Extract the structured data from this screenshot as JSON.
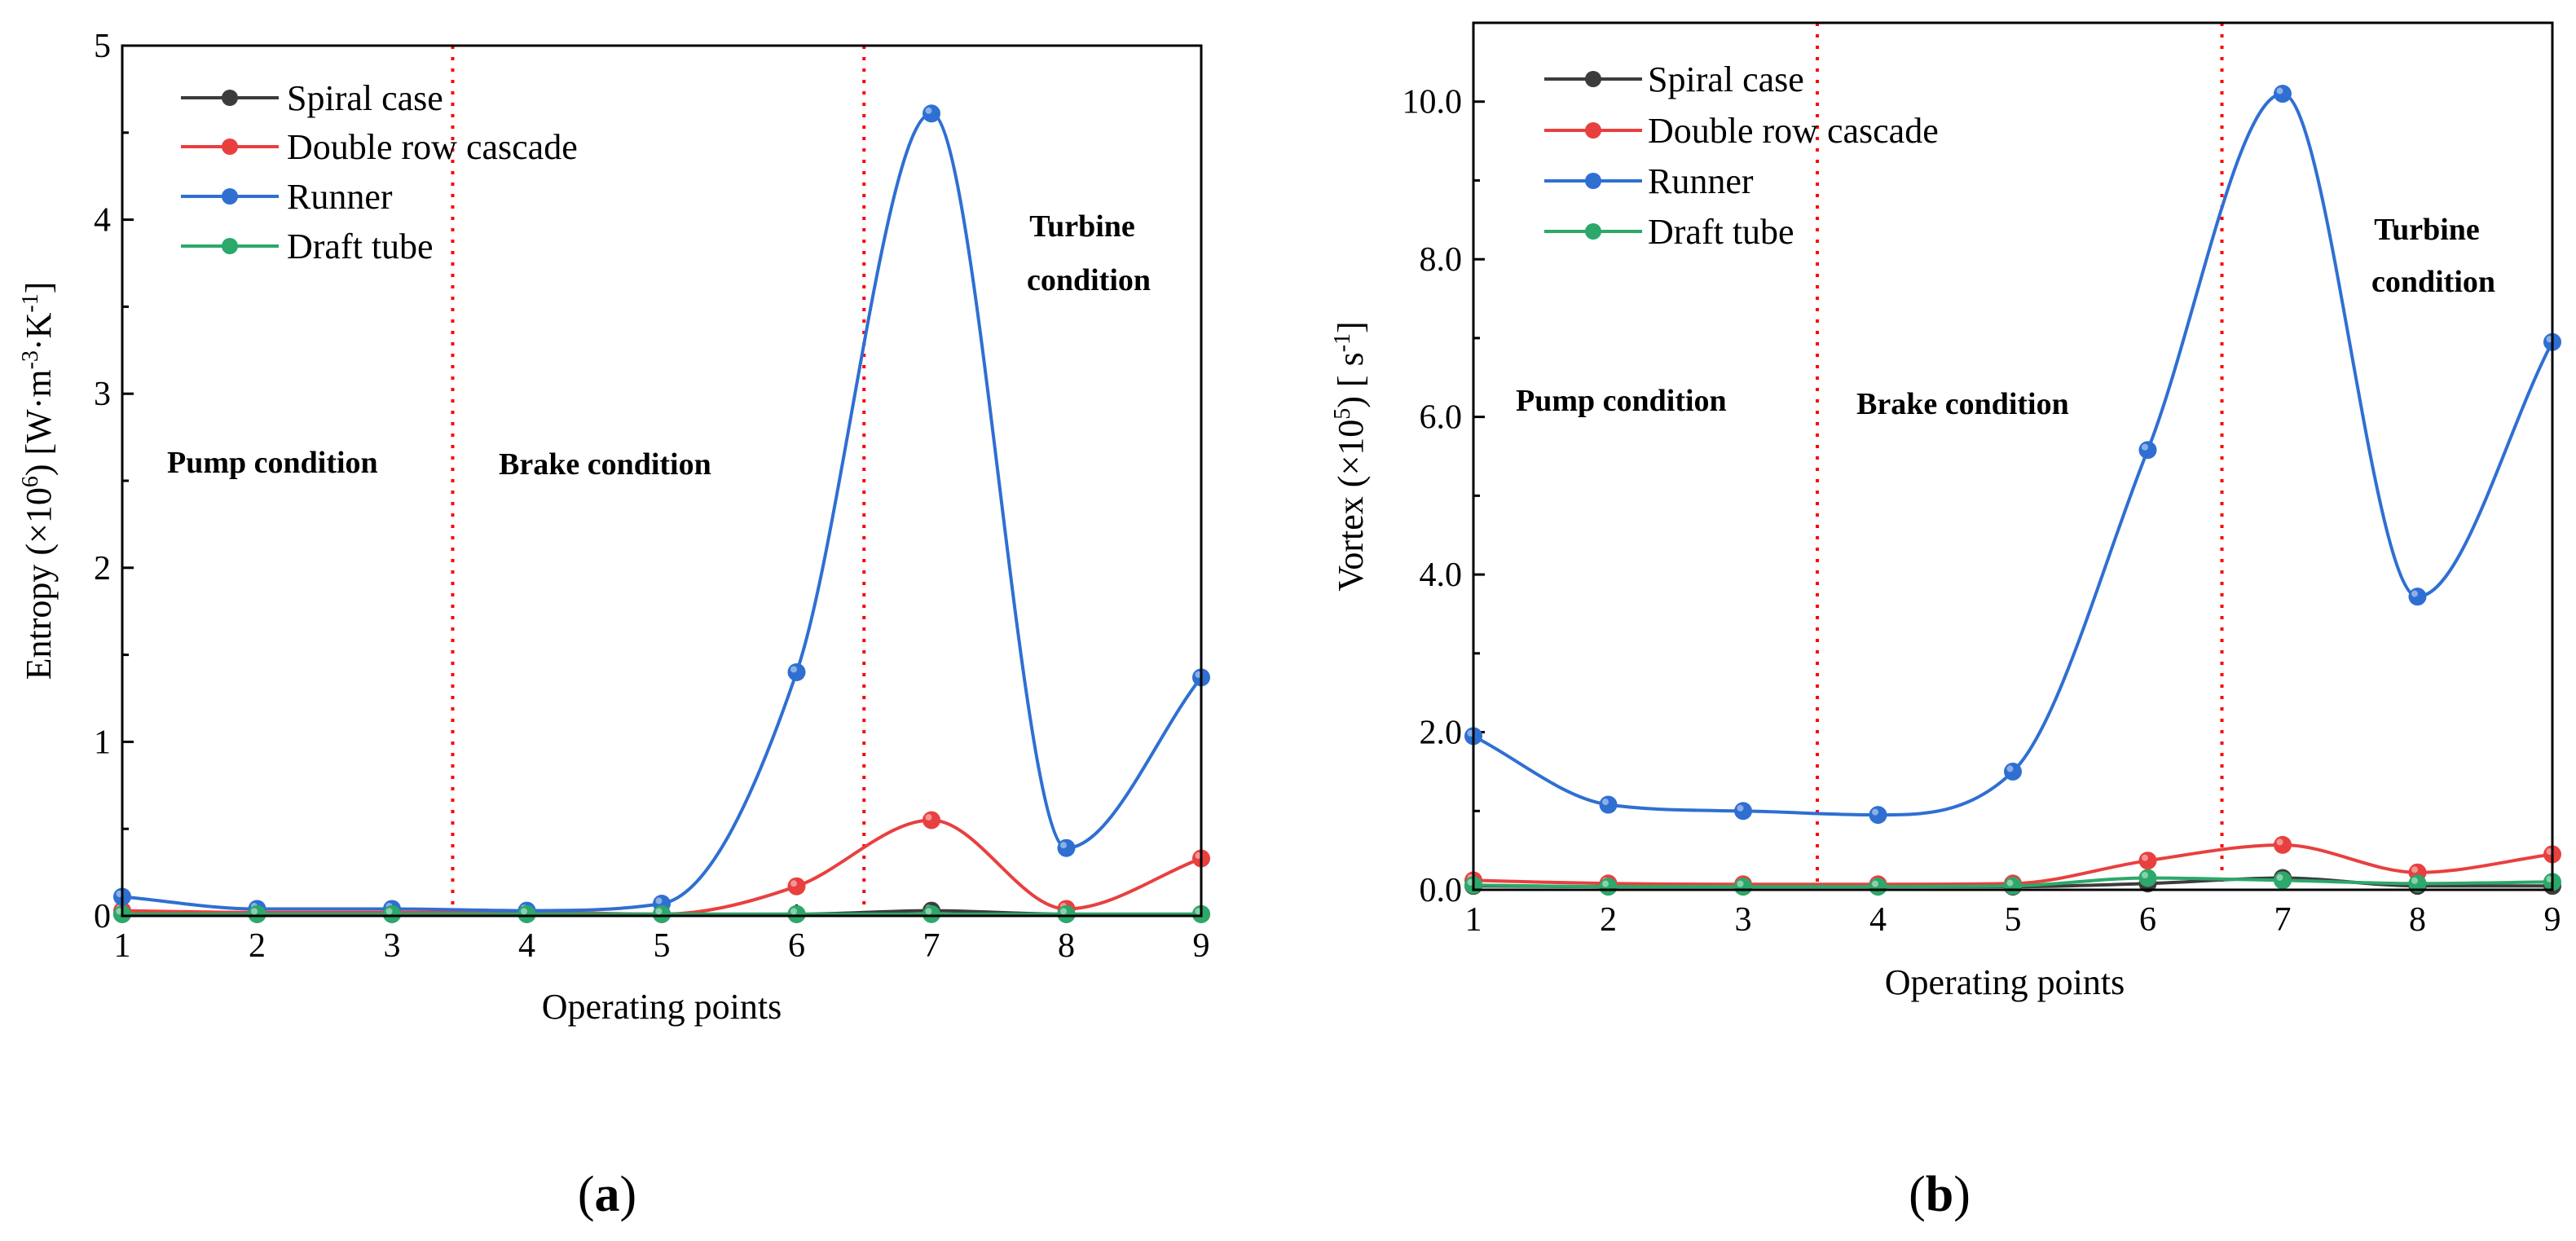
{
  "figure": {
    "panels": [
      {
        "letter": "a",
        "paren_open": "(",
        "paren_close": ")"
      },
      {
        "letter": "b",
        "paren_open": "(",
        "paren_close": ")"
      }
    ]
  },
  "chart_data": [
    {
      "type": "line",
      "panel": "a",
      "title": "",
      "xlabel": "Operating  points",
      "ylabel": {
        "prefix": "Entropy (×10",
        "exp1": "6",
        "mid": ") [W·m",
        "exp2": "-3",
        "mid2": "·K",
        "exp3": "-1",
        "suffix": "]"
      },
      "xlim": [
        1,
        9
      ],
      "ylim": [
        0,
        5
      ],
      "x": [
        1,
        2,
        3,
        4,
        5,
        6,
        7,
        8,
        9
      ],
      "xticks": [
        "1",
        "2",
        "3",
        "4",
        "5",
        "6",
        "7",
        "8",
        "9"
      ],
      "yticks": [
        {
          "value": 0,
          "label": "0"
        },
        {
          "value": 1,
          "label": "1"
        },
        {
          "value": 2,
          "label": "2"
        },
        {
          "value": 3,
          "label": "3"
        },
        {
          "value": 4,
          "label": "4"
        },
        {
          "value": 5,
          "label": "5"
        }
      ],
      "series": [
        {
          "name": "Spiral case",
          "color": "#3c3c3c",
          "values": [
            0.01,
            0.01,
            0.01,
            0.01,
            0.01,
            0.01,
            0.03,
            0.01,
            0.01
          ]
        },
        {
          "name": "Double row cascade",
          "color": "#e8403f",
          "values": [
            0.03,
            0.02,
            0.02,
            0.02,
            0.01,
            0.17,
            0.55,
            0.04,
            0.33
          ]
        },
        {
          "name": "Runner",
          "color": "#2f6fd2",
          "values": [
            0.11,
            0.04,
            0.04,
            0.03,
            0.07,
            1.4,
            4.61,
            0.39,
            1.37
          ]
        },
        {
          "name": "Draft tube",
          "color": "#2ca86a",
          "values": [
            0.01,
            0.01,
            0.01,
            0.01,
            0.01,
            0.01,
            0.01,
            0.01,
            0.01
          ]
        }
      ],
      "dividers": [
        3.45,
        6.5
      ],
      "regions": [
        {
          "label": "Pump condition"
        },
        {
          "label": "Brake condition"
        },
        {
          "lines": [
            "Turbine",
            "condition"
          ]
        }
      ],
      "legend_position": "top-left"
    },
    {
      "type": "line",
      "panel": "b",
      "title": "",
      "xlabel": "Operating  points",
      "ylabel": {
        "prefix": "Vortex (×10",
        "exp1": "5",
        "mid": ") [ s",
        "exp2": "-1",
        "suffix": "]"
      },
      "xlim": [
        1,
        9
      ],
      "ylim": [
        0,
        11
      ],
      "x": [
        1,
        2,
        3,
        4,
        5,
        6,
        7,
        8,
        9
      ],
      "xticks": [
        "1",
        "2",
        "3",
        "4",
        "5",
        "6",
        "7",
        "8",
        "9"
      ],
      "yticks": [
        {
          "value": 0,
          "label": "0.0"
        },
        {
          "value": 2,
          "label": "2.0"
        },
        {
          "value": 4,
          "label": "4.0"
        },
        {
          "value": 6,
          "label": "6.0"
        },
        {
          "value": 8,
          "label": "8.0"
        },
        {
          "value": 10,
          "label": "10.0"
        }
      ],
      "series": [
        {
          "name": "Spiral case",
          "color": "#3c3c3c",
          "values": [
            0.05,
            0.04,
            0.04,
            0.04,
            0.04,
            0.08,
            0.15,
            0.05,
            0.05
          ]
        },
        {
          "name": "Double row cascade",
          "color": "#e8403f",
          "values": [
            0.12,
            0.08,
            0.07,
            0.07,
            0.08,
            0.37,
            0.57,
            0.22,
            0.45
          ]
        },
        {
          "name": "Runner",
          "color": "#2f6fd2",
          "values": [
            1.95,
            1.08,
            1.0,
            0.95,
            1.5,
            5.58,
            10.1,
            3.72,
            6.95
          ]
        },
        {
          "name": "Draft tube",
          "color": "#2ca86a",
          "values": [
            0.06,
            0.04,
            0.04,
            0.04,
            0.05,
            0.15,
            0.12,
            0.08,
            0.1
          ]
        }
      ],
      "dividers": [
        3.55,
        6.55
      ],
      "regions": [
        {
          "label": "Pump condition"
        },
        {
          "label": "Brake condition"
        },
        {
          "lines": [
            "Turbine",
            "condition"
          ]
        }
      ],
      "legend_position": "top-left"
    }
  ]
}
